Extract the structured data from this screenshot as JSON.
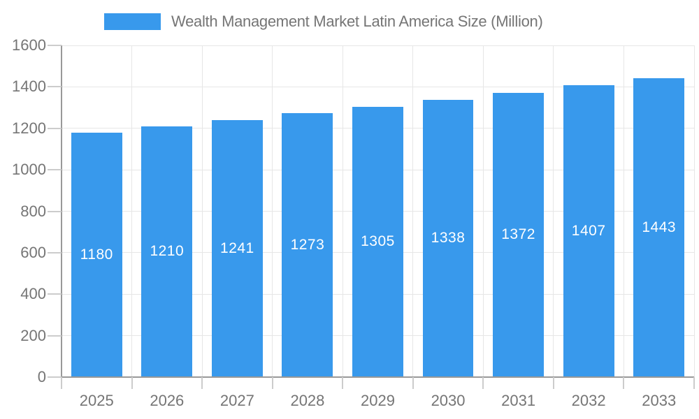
{
  "legend": {
    "label": "Wealth Management Market Latin America Size (Million)",
    "swatch_color": "#3899EC"
  },
  "chart_data": {
    "type": "bar",
    "title": "Wealth Management Market Latin America Size (Million)",
    "categories": [
      "2025",
      "2026",
      "2027",
      "2028",
      "2029",
      "2030",
      "2031",
      "2032",
      "2033"
    ],
    "values": [
      1180,
      1210,
      1241,
      1273,
      1305,
      1338,
      1372,
      1407,
      1443
    ],
    "value_labels": [
      "1180",
      "1210",
      "1241",
      "1273",
      "1305",
      "1338",
      "1372",
      "1407",
      "1443"
    ],
    "xlabel": "",
    "ylabel": "",
    "ylim": [
      0,
      1600
    ],
    "yticks": [
      0,
      200,
      400,
      600,
      800,
      1000,
      1200,
      1400,
      1600
    ],
    "grid": true,
    "legend_position": "top",
    "bar_color": "#3899EC",
    "value_label_color": "#FFFFFF",
    "axis_text_color": "#757575",
    "gridline_color": "#E6E6E6",
    "axis_line_color": "#999999",
    "tick_color": "#CCCCCC"
  }
}
